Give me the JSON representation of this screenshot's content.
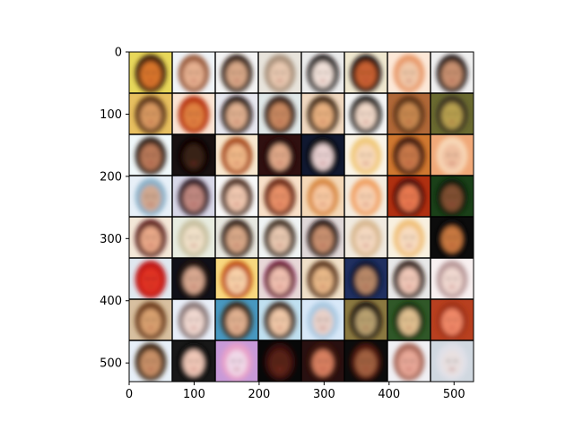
{
  "chart_data": {
    "type": "image-grid",
    "title": "",
    "xlabel": "",
    "ylabel": "",
    "grid": false,
    "image_extent": {
      "width": 530,
      "height": 530
    },
    "rows": 8,
    "cols": 8,
    "xlim": [
      0,
      530
    ],
    "ylim": [
      530,
      0
    ],
    "xticks": [
      0,
      100,
      200,
      300,
      400,
      500
    ],
    "yticks": [
      0,
      100,
      200,
      300,
      400,
      500
    ],
    "tile_content": "generated face images",
    "tiles": [
      {
        "bg": "#e8d85a",
        "hair": "#3a1c0c",
        "skin": "#d8752a"
      },
      {
        "bg": "#f0f4f8",
        "hair": "#9a5a3a",
        "skin": "#e6b090"
      },
      {
        "bg": "#f4f4f4",
        "hair": "#2a1810",
        "skin": "#d8a888"
      },
      {
        "bg": "#e8e4dc",
        "hair": "#a8907a",
        "skin": "#e8c8b0"
      },
      {
        "bg": "#ececec",
        "hair": "#141010",
        "skin": "#f0e0d8"
      },
      {
        "bg": "#f0e8d0",
        "hair": "#180c08",
        "skin": "#c86030"
      },
      {
        "bg": "#fce8d8",
        "hair": "#e89868",
        "skin": "#f0c8a8"
      },
      {
        "bg": "#f0f0f0",
        "hair": "#201814",
        "skin": "#c89070"
      },
      {
        "bg": "#e8c060",
        "hair": "#5a3018",
        "skin": "#d89860"
      },
      {
        "bg": "#fae4d4",
        "hair": "#b83010",
        "skin": "#e08040"
      },
      {
        "bg": "#e8e8f0",
        "hair": "#1a1010",
        "skin": "#e0b090"
      },
      {
        "bg": "#e0e8e8",
        "hair": "#301c14",
        "skin": "#c88860"
      },
      {
        "bg": "#f0d8c0",
        "hair": "#3a2010",
        "skin": "#e8b080"
      },
      {
        "bg": "#f4f4f4",
        "hair": "#100808",
        "skin": "#f0d8c8"
      },
      {
        "bg": "#b06838",
        "hair": "#5a3018",
        "skin": "#c88850"
      },
      {
        "bg": "#6a6a30",
        "hair": "#3a3020",
        "skin": "#b8a050"
      },
      {
        "bg": "#f0f8fa",
        "hair": "#2a1c14",
        "skin": "#b87858"
      },
      {
        "bg": "#181010",
        "hair": "#0c0606",
        "skin": "#382018"
      },
      {
        "bg": "#f8e8d0",
        "hair": "#a84818",
        "skin": "#f0b888"
      },
      {
        "bg": "#301010",
        "hair": "#280c08",
        "skin": "#e0a888"
      },
      {
        "bg": "#101830",
        "hair": "#080810",
        "skin": "#e8d0d0"
      },
      {
        "bg": "#faf4e8",
        "hair": "#f0c878",
        "skin": "#f8d8b8"
      },
      {
        "bg": "#d07830",
        "hair": "#3a1808",
        "skin": "#c87848"
      },
      {
        "bg": "#f0a878",
        "hair": "#f8d8b8",
        "skin": "#f0c0a0"
      },
      {
        "bg": "#e8f0f8",
        "hair": "#8ab0c8",
        "skin": "#d0a890"
      },
      {
        "bg": "#d8d8e8",
        "hair": "#2a1420",
        "skin": "#c08880"
      },
      {
        "bg": "#f8f8f8",
        "hair": "#4a2818",
        "skin": "#f0c8b0"
      },
      {
        "bg": "#f8e0c8",
        "hair": "#682010",
        "skin": "#e89068"
      },
      {
        "bg": "#f4d8b8",
        "hair": "#d88840",
        "skin": "#f8c8a0"
      },
      {
        "bg": "#f4ece0",
        "hair": "#f0a060",
        "skin": "#f8d0b0"
      },
      {
        "bg": "#b03010",
        "hair": "#501008",
        "skin": "#e87850"
      },
      {
        "bg": "#1a4018",
        "hair": "#0c1c08",
        "skin": "#805030"
      },
      {
        "bg": "#f4e8d8",
        "hair": "#5a1818",
        "skin": "#e8a888"
      },
      {
        "bg": "#e8ece0",
        "hair": "#c8c0a0",
        "skin": "#f0e0c8"
      },
      {
        "bg": "#e8e8e0",
        "hair": "#2a1810",
        "skin": "#d8a888"
      },
      {
        "bg": "#f0f4f4",
        "hair": "#3a2818",
        "skin": "#e8c8b0"
      },
      {
        "bg": "#e0d8d8",
        "hair": "#1c1010",
        "skin": "#c89070"
      },
      {
        "bg": "#f0eae0",
        "hair": "#d8b890",
        "skin": "#f4d8c0"
      },
      {
        "bg": "#f8f0e0",
        "hair": "#f0c078",
        "skin": "#f8dcc0"
      },
      {
        "bg": "#0c0c0c",
        "hair": "#100808",
        "skin": "#c87840"
      },
      {
        "bg": "#e0e8f0",
        "hair": "#c01818",
        "skin": "#e03020"
      },
      {
        "bg": "#101018",
        "hair": "#281410",
        "skin": "#d8a890"
      },
      {
        "bg": "#f8d880",
        "hair": "#c05010",
        "skin": "#f8d0a8"
      },
      {
        "bg": "#e8d8d8",
        "hair": "#6a1030",
        "skin": "#f0c0b0"
      },
      {
        "bg": "#f0e0c8",
        "hair": "#5a3018",
        "skin": "#e8b888"
      },
      {
        "bg": "#203060",
        "hair": "#0c1830",
        "skin": "#b88868"
      },
      {
        "bg": "#e8e8e8",
        "hair": "#2a1410",
        "skin": "#f0c8b8"
      },
      {
        "bg": "#f8f0f0",
        "hair": "#b89898",
        "skin": "#f0d8d0"
      },
      {
        "bg": "#d8c0a0",
        "hair": "#6a3818",
        "skin": "#d8a070"
      },
      {
        "bg": "#e8eef8",
        "hair": "#8a7878",
        "skin": "#f0d8d0"
      },
      {
        "bg": "#4898c0",
        "hair": "#3a2010",
        "skin": "#e0b090"
      },
      {
        "bg": "#c0e0f0",
        "hair": "#382418",
        "skin": "#f0c8a8"
      },
      {
        "bg": "#d8e8f8",
        "hair": "#a8c8e0",
        "skin": "#e8d0c8"
      },
      {
        "bg": "#8a7840",
        "hair": "#181008",
        "skin": "#b8a070"
      },
      {
        "bg": "#305828",
        "hair": "#183010",
        "skin": "#e0c090"
      },
      {
        "bg": "#b84020",
        "hair": "#a03018",
        "skin": "#f08868"
      },
      {
        "bg": "#e8f0f8",
        "hair": "#3a2010",
        "skin": "#c89068"
      },
      {
        "bg": "#181818",
        "hair": "#101010",
        "skin": "#f0c8b8"
      },
      {
        "bg": "#c89ad8",
        "hair": "#e8a0c8",
        "skin": "#f0d8e8"
      },
      {
        "bg": "#080808",
        "hair": "#381008",
        "skin": "#582418"
      },
      {
        "bg": "#281010",
        "hair": "#401810",
        "skin": "#d88060"
      },
      {
        "bg": "#0c0c0c",
        "hair": "#501808",
        "skin": "#a06040"
      },
      {
        "bg": "#f0f0f4",
        "hair": "#a86858",
        "skin": "#e8a898"
      },
      {
        "bg": "#d0d8e0",
        "hair": "#e0e0e8",
        "skin": "#e8e0e0"
      }
    ]
  }
}
